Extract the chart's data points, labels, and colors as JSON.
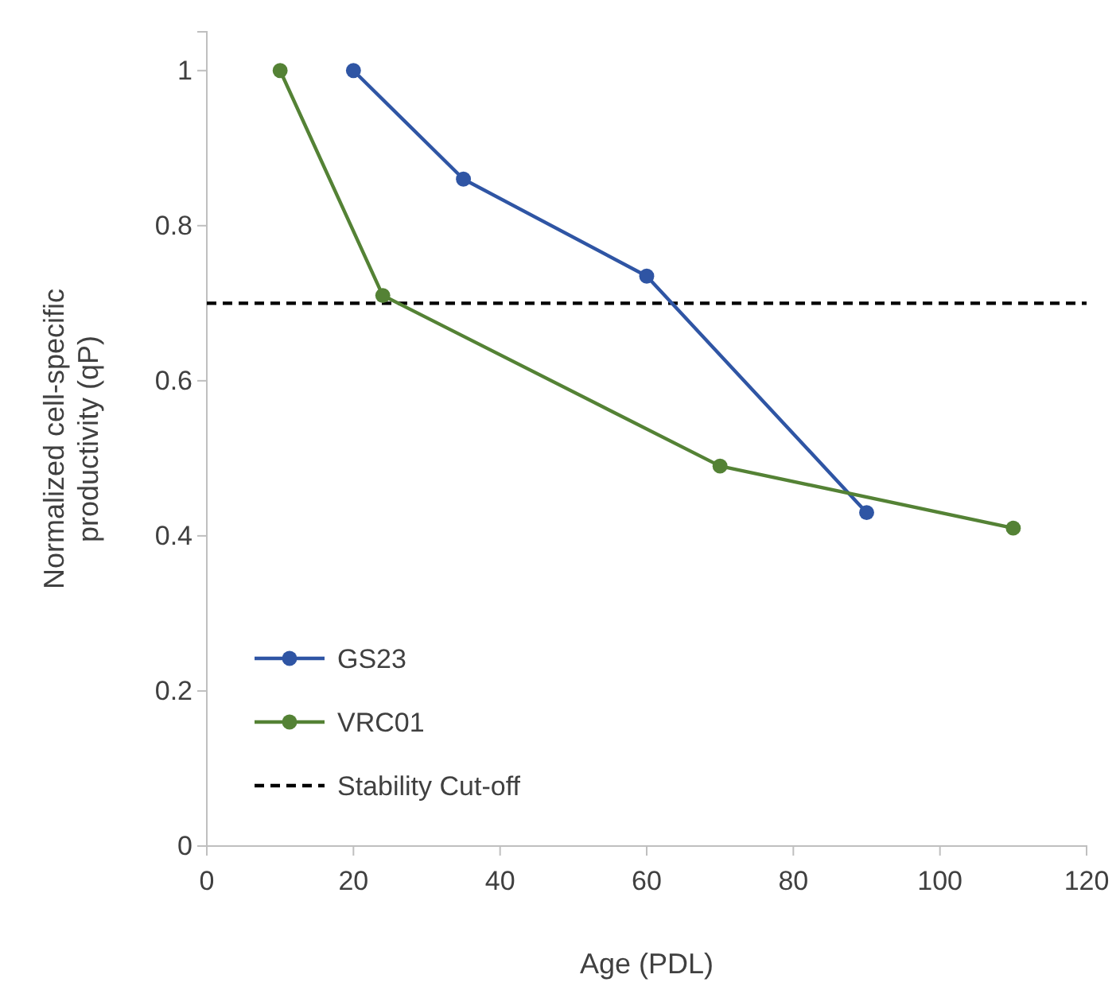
{
  "chart_data": {
    "type": "line",
    "xlabel": "Age (PDL)",
    "ylabel": "Normalized cell-specific productivity (qP)",
    "series": [
      {
        "name": "GS23",
        "color": "#2f55a4",
        "x": [
          20,
          35,
          60,
          90
        ],
        "values": [
          1,
          0.86,
          0.735,
          0.43
        ]
      },
      {
        "name": "VRC01",
        "color": "#548235",
        "x": [
          10,
          24,
          70,
          110
        ],
        "values": [
          1,
          0.71,
          0.49,
          0.41
        ]
      }
    ],
    "xlim": [
      0,
      120
    ],
    "xticks": [
      0,
      20,
      40,
      60,
      80,
      100,
      120
    ],
    "ylim": [
      0,
      1.05
    ],
    "yticks": [
      0,
      0.2,
      0.4,
      0.6,
      0.8,
      1
    ],
    "ref_lines": [
      {
        "axis": "y",
        "value": 0.7,
        "label": "Stability Cut-off",
        "color": "#000000",
        "line_style": "dashed"
      }
    ],
    "marker": "circle",
    "legend": "bottom left",
    "grid": false
  }
}
